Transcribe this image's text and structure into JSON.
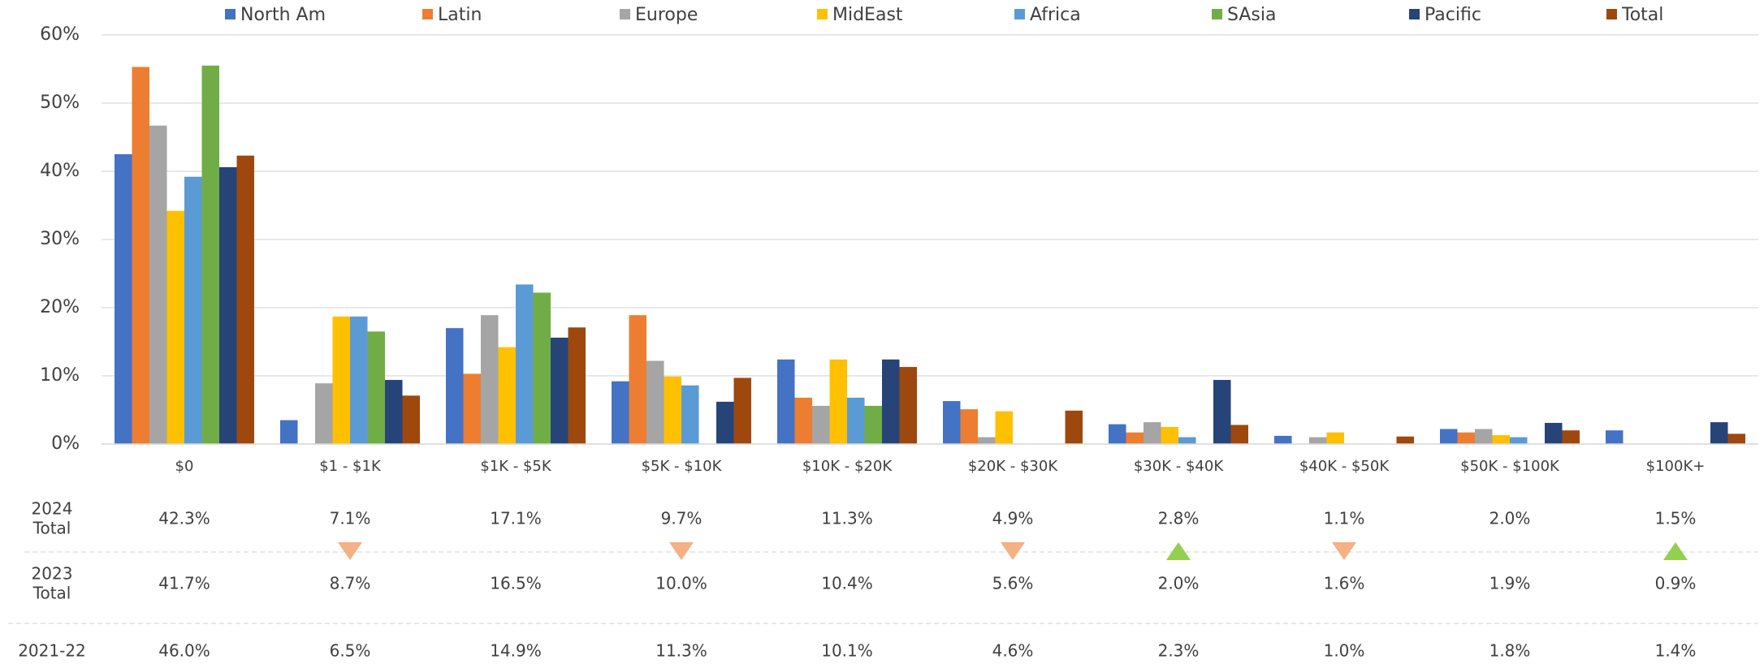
{
  "chart_data": {
    "type": "bar",
    "categories": [
      "$0",
      "$1 - $1K",
      "$1K - $5K",
      "$5K - $10K",
      "$10K - $20K",
      "$20K - $30K",
      "$30K - $40K",
      "$40K - $50K",
      "$50K - $100K",
      "$100K+"
    ],
    "series": [
      {
        "name": "North Am",
        "color": "#4472c4",
        "values": [
          42.5,
          3.5,
          17.0,
          9.2,
          12.4,
          6.3,
          2.9,
          1.2,
          2.2,
          2.0
        ]
      },
      {
        "name": "Latin",
        "color": "#ed7d31",
        "values": [
          55.3,
          0,
          10.3,
          18.9,
          6.8,
          5.1,
          1.7,
          0,
          1.7,
          0
        ]
      },
      {
        "name": "Europe",
        "color": "#a5a5a5",
        "values": [
          46.7,
          8.9,
          18.9,
          12.2,
          5.6,
          1.0,
          3.2,
          1.0,
          2.2,
          0
        ]
      },
      {
        "name": "MidEast",
        "color": "#ffc000",
        "values": [
          34.2,
          18.7,
          14.2,
          9.9,
          12.4,
          4.8,
          2.5,
          1.7,
          1.3,
          0
        ]
      },
      {
        "name": "Africa",
        "color": "#5b9bd5",
        "values": [
          39.2,
          18.7,
          23.4,
          8.6,
          6.8,
          0,
          1.0,
          0,
          1.0,
          0
        ]
      },
      {
        "name": "SAsia",
        "color": "#70ad47",
        "values": [
          55.5,
          16.5,
          22.2,
          0,
          5.6,
          0,
          0,
          0,
          0,
          0
        ]
      },
      {
        "name": "Pacific",
        "color": "#264478",
        "values": [
          40.6,
          9.4,
          15.6,
          6.2,
          12.4,
          0,
          9.4,
          0,
          3.1,
          3.2
        ]
      },
      {
        "name": "Total",
        "color": "#9e480e",
        "values": [
          42.3,
          7.1,
          17.1,
          9.7,
          11.3,
          4.9,
          2.8,
          1.1,
          2.0,
          1.5
        ]
      }
    ],
    "ylim": [
      0,
      60
    ],
    "yticks": [
      {
        "value": 0,
        "label": "0%"
      },
      {
        "value": 10,
        "label": "10%"
      },
      {
        "value": 20,
        "label": "20%"
      },
      {
        "value": 30,
        "label": "30%"
      },
      {
        "value": 40,
        "label": "40%"
      },
      {
        "value": 50,
        "label": "50%"
      },
      {
        "value": 60,
        "label": "60%"
      }
    ],
    "grid": true,
    "legend": "top",
    "table": {
      "rows": [
        {
          "label": [
            "2024",
            "Total"
          ],
          "cells": [
            "42.3%",
            "7.1%",
            "17.1%",
            "9.7%",
            "11.3%",
            "4.9%",
            "2.8%",
            "1.1%",
            "2.0%",
            "1.5%"
          ]
        },
        {
          "label": [
            "2023",
            "Total"
          ],
          "cells": [
            "41.7%",
            "8.7%",
            "16.5%",
            "10.0%",
            "10.4%",
            "5.6%",
            "2.0%",
            "1.6%",
            "1.9%",
            "0.9%"
          ]
        },
        {
          "label": [
            "2021-22"
          ],
          "cells": [
            "46.0%",
            "6.5%",
            "14.9%",
            "11.3%",
            "10.1%",
            "4.6%",
            "2.3%",
            "1.0%",
            "1.8%",
            "1.4%"
          ]
        }
      ],
      "trend": [
        null,
        "down",
        null,
        "down",
        null,
        "down",
        "up",
        "down",
        null,
        "up"
      ],
      "trend_colors": {
        "down": "#f4b183",
        "up": "#92d050"
      }
    }
  }
}
